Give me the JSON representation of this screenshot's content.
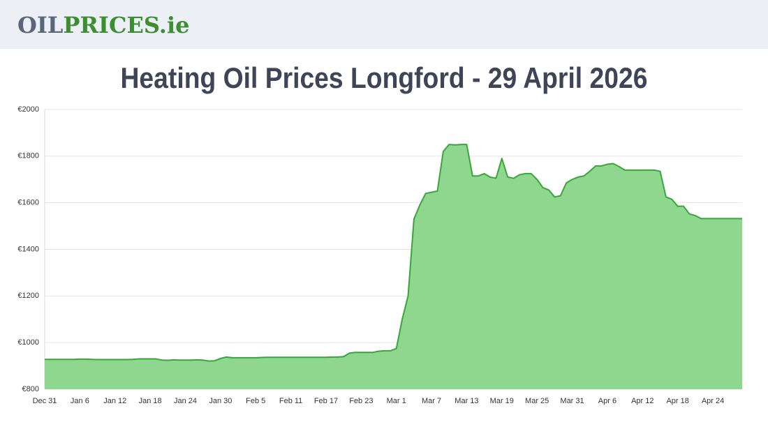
{
  "header": {
    "logo_main": "OIL",
    "logo_accent": "PRICES.ie"
  },
  "chart_data": {
    "type": "area",
    "title": "Heating Oil Prices Longford - 29 April 2026",
    "categories": [
      "Dec 31",
      null,
      null,
      null,
      null,
      null,
      "Jan 6",
      null,
      null,
      null,
      null,
      null,
      "Jan 12",
      null,
      null,
      null,
      null,
      null,
      "Jan 18",
      null,
      null,
      null,
      null,
      null,
      "Jan 24",
      null,
      null,
      null,
      null,
      null,
      "Jan 30",
      null,
      null,
      null,
      null,
      null,
      "Feb 5",
      null,
      null,
      null,
      null,
      null,
      "Feb 11",
      null,
      null,
      null,
      null,
      null,
      "Feb 17",
      null,
      null,
      null,
      null,
      null,
      "Feb 23",
      null,
      null,
      null,
      null,
      null,
      "Mar 1",
      null,
      null,
      null,
      null,
      null,
      "Mar 7",
      null,
      null,
      null,
      null,
      null,
      "Mar 13",
      null,
      null,
      null,
      null,
      null,
      "Mar 19",
      null,
      null,
      null,
      null,
      null,
      "Mar 25",
      null,
      null,
      null,
      null,
      null,
      "Mar 31",
      null,
      null,
      null,
      null,
      null,
      "Apr 6",
      null,
      null,
      null,
      null,
      null,
      "Apr 12",
      null,
      null,
      null,
      null,
      null,
      "Apr 18",
      null,
      null,
      null,
      null,
      null,
      "Apr 24",
      null,
      null,
      null,
      null,
      null
    ],
    "values": [
      928,
      928,
      928,
      928,
      928,
      928,
      929,
      929,
      928,
      927,
      927,
      927,
      927,
      927,
      927,
      928,
      930,
      930,
      930,
      930,
      925,
      924,
      926,
      925,
      925,
      925,
      926,
      925,
      921,
      922,
      932,
      938,
      935,
      935,
      935,
      935,
      935,
      936,
      937,
      937,
      937,
      937,
      937,
      937,
      937,
      937,
      937,
      937,
      937,
      938,
      938,
      940,
      955,
      958,
      958,
      958,
      958,
      963,
      965,
      965,
      975,
      1100,
      1200,
      1530,
      1590,
      1640,
      1645,
      1650,
      1820,
      1850,
      1848,
      1850,
      1850,
      1715,
      1715,
      1725,
      1710,
      1705,
      1790,
      1710,
      1705,
      1720,
      1725,
      1725,
      1700,
      1665,
      1655,
      1625,
      1630,
      1685,
      1700,
      1710,
      1715,
      1735,
      1758,
      1758,
      1765,
      1768,
      1755,
      1740,
      1740,
      1740,
      1740,
      1740,
      1740,
      1735,
      1625,
      1615,
      1585,
      1585,
      1552,
      1545,
      1532,
      1532,
      1532,
      1532,
      1532,
      1532,
      1532,
      1532
    ],
    "color": "#3aa53a",
    "fill_color": "#8fd68f",
    "ylim": [
      800,
      2000
    ],
    "yticks": [
      {
        "value": 800,
        "label": "€800"
      },
      {
        "value": 1000,
        "label": "€1000"
      },
      {
        "value": 1200,
        "label": "€1200"
      },
      {
        "value": 1400,
        "label": "€1400"
      },
      {
        "value": 1600,
        "label": "€1600"
      },
      {
        "value": 1800,
        "label": "€1800"
      },
      {
        "value": 2000,
        "label": "€2000"
      }
    ],
    "grid": true
  }
}
